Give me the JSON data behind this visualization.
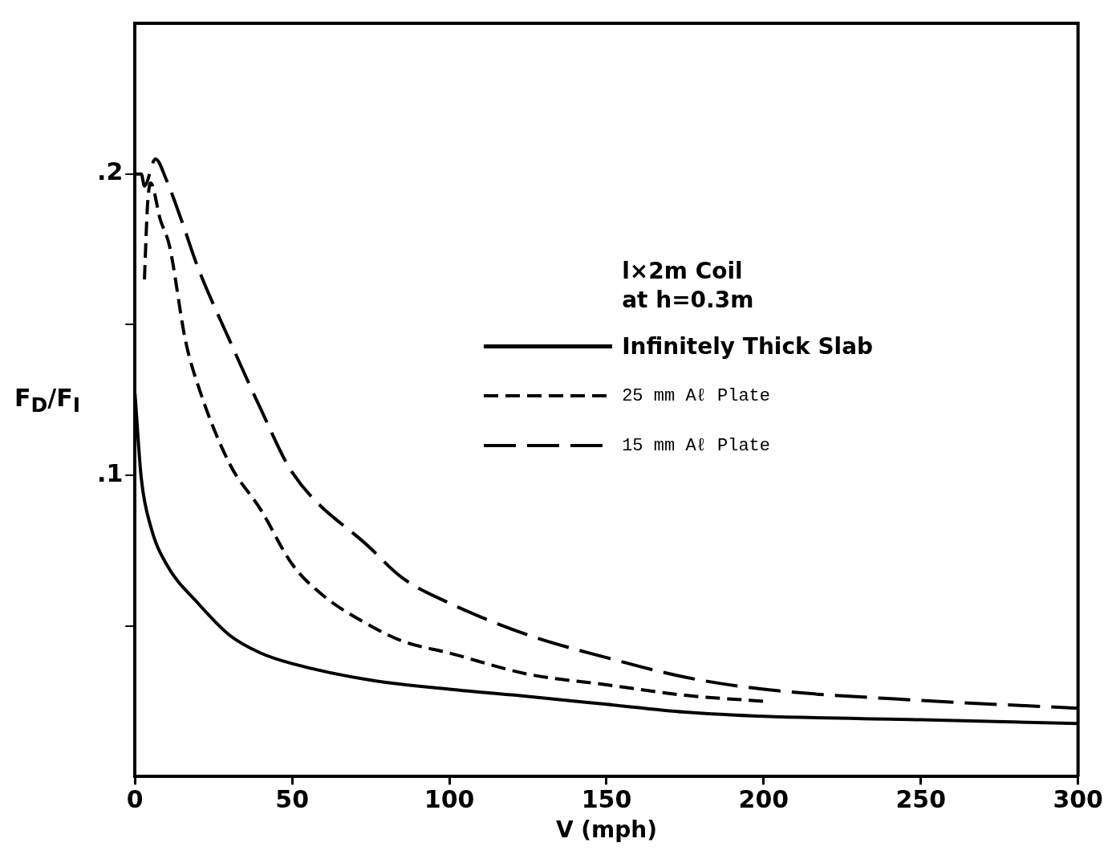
{
  "chart_data": {
    "type": "line",
    "xlabel": "V (mph)",
    "ylabel": "F$_{D}$/F$_{I}$",
    "legend_title": "l×2m Coil\nat h=0.3m",
    "legend": "right",
    "grid": false,
    "marker": "none",
    "xlim": [
      0,
      300
    ],
    "xticks": [
      0,
      50,
      100,
      150,
      200,
      250,
      300
    ],
    "ylim": [
      0,
      0.25
    ],
    "yticks": [
      {
        "value": 0.05,
        "label": null
      },
      {
        "value": 0.1,
        "label": ".1"
      },
      {
        "value": 0.15,
        "label": null
      },
      {
        "value": 0.2,
        "label": ".2"
      }
    ],
    "series": [
      {
        "name": "Infinitely Thick Slab",
        "color": "#000000",
        "line_style": "solid",
        "x": [
          0,
          2,
          5,
          10,
          20,
          30,
          40,
          50,
          75,
          100,
          125,
          150,
          175,
          200,
          250,
          300
        ],
        "values": [
          0.127,
          0.099,
          0.083,
          0.0705,
          0.0576,
          0.047,
          0.041,
          0.0375,
          0.032,
          0.029,
          0.0266,
          0.024,
          0.0214,
          0.02,
          0.0189,
          0.0176
        ]
      },
      {
        "name": "25 mm Aℓ Plate",
        "color": "#000000",
        "line_style": "dashed",
        "x": [
          3,
          4,
          5,
          8,
          11,
          16,
          20,
          30,
          40,
          50,
          60,
          75,
          85,
          100,
          125,
          150,
          175,
          200
        ],
        "values": [
          0.165,
          0.19,
          0.197,
          0.185,
          0.176,
          0.145,
          0.13,
          0.104,
          0.0886,
          0.0705,
          0.06,
          0.05,
          0.045,
          0.041,
          0.034,
          0.0305,
          0.027,
          0.025
        ]
      },
      {
        "name": "15 mm Aℓ Plate",
        "color": "#000000",
        "line_style": "long-dashed",
        "x": [
          0,
          2,
          3,
          6.5,
          10,
          15,
          20,
          30,
          40,
          50,
          75,
          85,
          100,
          125,
          150,
          175,
          200,
          250,
          300
        ],
        "values": [
          0.2,
          0.2,
          0.196,
          0.205,
          0.198,
          0.184,
          0.169,
          0.145,
          0.122,
          0.101,
          0.0757,
          0.066,
          0.0576,
          0.047,
          0.0395,
          0.033,
          0.029,
          0.0253,
          0.0227
        ]
      }
    ]
  }
}
